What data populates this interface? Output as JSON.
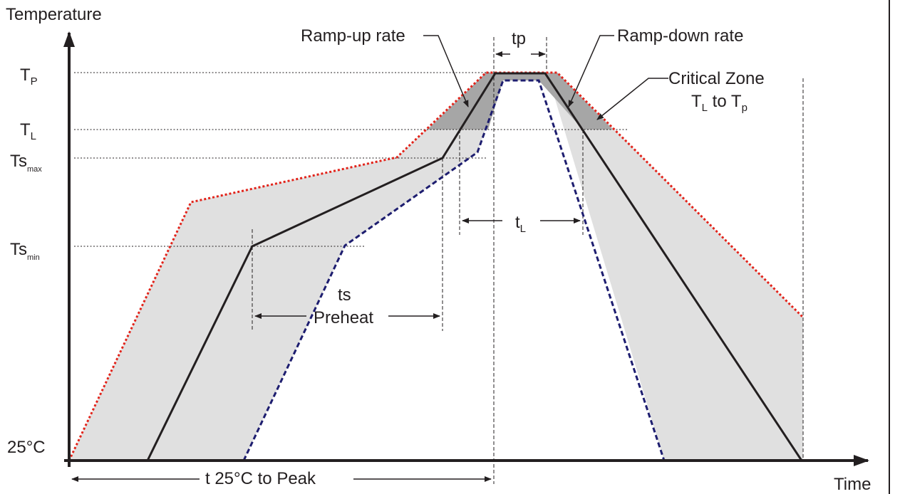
{
  "axes": {
    "y_label": "Temperature",
    "x_label": "Time"
  },
  "levels": {
    "tp": {
      "main": "T",
      "sub": "P"
    },
    "tl": {
      "main": "T",
      "sub": "L"
    },
    "tsmax": {
      "main": "Ts",
      "sub": "max"
    },
    "tsmin": {
      "main": "Ts",
      "sub": "min"
    },
    "ambient": "25°C"
  },
  "annotations": {
    "ramp_up": "Ramp-up rate",
    "ramp_down": "Ramp-down rate",
    "tp_width": "tp",
    "critical_zone_line1": "Critical Zone",
    "critical_zone_line2": {
      "a": "T",
      "a_sub": "L",
      "mid": " to T",
      "b_sub": "p"
    },
    "tl_width": {
      "main": "t",
      "sub": "L"
    },
    "ts": "ts",
    "preheat": "Preheat",
    "t_to_peak": "t 25°C to Peak"
  },
  "colors": {
    "band_fill": "#e0e0e0",
    "critical_fill": "#a6a6a6",
    "upper_limit": "#e2231a",
    "lower_limit": "#1d1d6f",
    "nominal": "#231f20"
  }
}
